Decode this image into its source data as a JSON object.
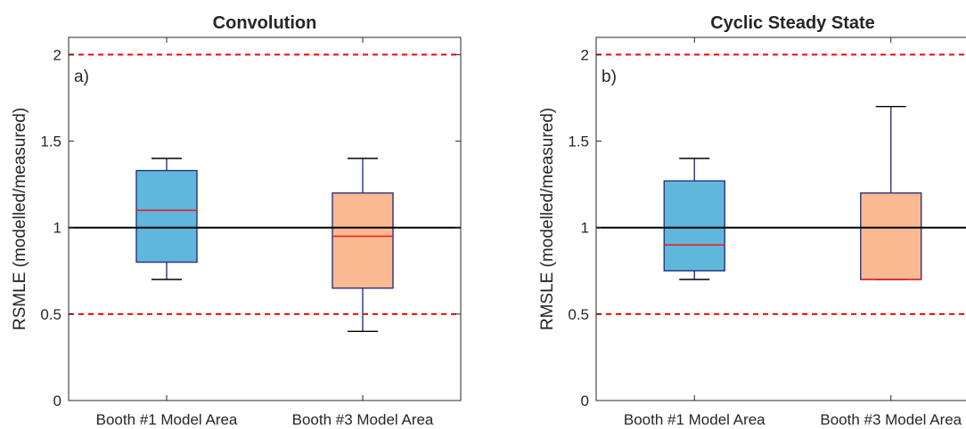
{
  "colors": {
    "box_series_1": "#5fb7dc",
    "box_series_2": "#fbb991",
    "box_edge": "#27337a",
    "median": "#e8231f",
    "reference_line": "#000000",
    "threshold_line": "#ff0000",
    "axes": "#262626"
  },
  "chart_data": [
    {
      "type": "box",
      "title": "Convolution",
      "panel_label": "a)",
      "ylabel": "RSMLE (modelled/measured)",
      "xlabel": "",
      "categories": [
        "Booth #1 Model Area",
        "Booth #3 Model Area"
      ],
      "ylim": [
        0,
        2.1
      ],
      "yticks": [
        0,
        0.5,
        1,
        1.5,
        2
      ],
      "ytick_labels": [
        "0",
        "0.5",
        "1",
        "1.5",
        "2"
      ],
      "grid": false,
      "boxes": [
        {
          "whisker_low": 0.7,
          "q1": 0.8,
          "median": 1.1,
          "q3": 1.33,
          "whisker_high": 1.4
        },
        {
          "whisker_low": 0.4,
          "q1": 0.65,
          "median": 0.95,
          "q3": 1.2,
          "whisker_high": 1.4
        }
      ],
      "reference_lines": [
        {
          "y": 1,
          "style": "solid",
          "color": "#000000"
        },
        {
          "y": 2,
          "style": "dashed",
          "color": "#ff0000"
        },
        {
          "y": 0.5,
          "style": "dashed",
          "color": "#ff0000"
        }
      ]
    },
    {
      "type": "box",
      "title": "Cyclic Steady State",
      "panel_label": "b)",
      "ylabel": "RMSLE (modelled/measured)",
      "xlabel": "",
      "categories": [
        "Booth #1 Model Area",
        "Booth #3 Model Area"
      ],
      "ylim": [
        0,
        2.1
      ],
      "yticks": [
        0,
        0.5,
        1,
        1.5,
        2
      ],
      "ytick_labels": [
        "0",
        "0.5",
        "1",
        "1.5",
        "2"
      ],
      "grid": false,
      "boxes": [
        {
          "whisker_low": 0.7,
          "q1": 0.75,
          "median": 0.9,
          "q3": 1.27,
          "whisker_high": 1.4
        },
        {
          "whisker_low": 0.7,
          "q1": 0.7,
          "median": 0.7,
          "q3": 1.2,
          "whisker_high": 1.7
        }
      ],
      "reference_lines": [
        {
          "y": 1,
          "style": "solid",
          "color": "#000000"
        },
        {
          "y": 2,
          "style": "dashed",
          "color": "#ff0000"
        },
        {
          "y": 0.5,
          "style": "dashed",
          "color": "#ff0000"
        }
      ]
    }
  ]
}
